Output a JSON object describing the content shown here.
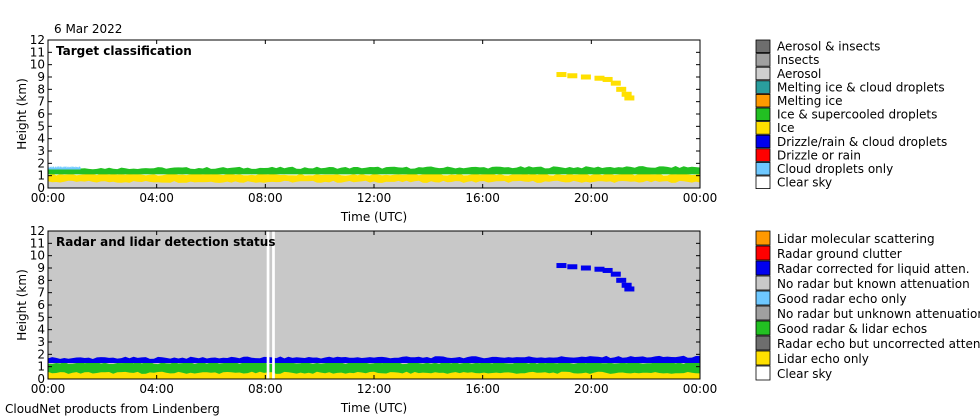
{
  "header": {
    "date": "6 Mar 2022"
  },
  "footer": {
    "text": "CloudNet products from Lindenberg"
  },
  "chart_data": [
    {
      "type": "heatmap",
      "title": "Target classification",
      "xlabel": "Time (UTC)",
      "ylabel": "Height (km)",
      "xlim": [
        0,
        24
      ],
      "ylim": [
        0,
        12
      ],
      "xticks": [
        "00:00",
        "04:00",
        "08:00",
        "12:00",
        "16:00",
        "20:00",
        "00:00"
      ],
      "yticks": [
        "0",
        "1",
        "2",
        "3",
        "4",
        "5",
        "6",
        "7",
        "8",
        "9",
        "10",
        "11",
        "12"
      ],
      "background": "#ffffff",
      "legend": [
        {
          "label": "Aerosol & insects",
          "color": "#6e6e6e"
        },
        {
          "label": "Insects",
          "color": "#a0a0a0"
        },
        {
          "label": "Aerosol",
          "color": "#cfcfcf"
        },
        {
          "label": "Melting ice & cloud droplets",
          "color": "#2a9d9d"
        },
        {
          "label": "Melting ice",
          "color": "#ff9900"
        },
        {
          "label": "Ice & supercooled droplets",
          "color": "#22c022"
        },
        {
          "label": "Ice",
          "color": "#ffe000"
        },
        {
          "label": "Drizzle/rain & cloud droplets",
          "color": "#0000ee"
        },
        {
          "label": "Drizzle or rain",
          "color": "#ff0000"
        },
        {
          "label": "Cloud droplets only",
          "color": "#6ec8ff"
        },
        {
          "label": "Clear sky",
          "color": "#ffffff"
        }
      ],
      "layers": [
        {
          "class": "Ice",
          "color": "#ffe000",
          "x": [
            0,
            24
          ],
          "base_km": [
            0.0,
            0.0
          ],
          "top_km": [
            1.1,
            1.1
          ]
        },
        {
          "class": "Aerosol",
          "color": "#cfcfcf",
          "x": [
            0,
            24
          ],
          "base_km": [
            0.0,
            0.0
          ],
          "top_km": [
            0.5,
            0.5
          ]
        },
        {
          "class": "Ice & supercooled droplets",
          "color": "#22c022",
          "x": [
            0,
            24
          ],
          "base_km": [
            1.1,
            1.1
          ],
          "top_km": [
            1.6,
            1.7
          ]
        },
        {
          "class": "Cloud droplets only",
          "color": "#6ec8ff",
          "x": [
            0,
            1.2
          ],
          "base_km": [
            1.5,
            1.5
          ],
          "top_km": [
            1.7,
            1.7
          ]
        }
      ],
      "elevated_layer": {
        "class": "Ice",
        "color": "#ffe000",
        "points": [
          [
            18.9,
            9.2
          ],
          [
            19.3,
            9.1
          ],
          [
            19.8,
            9.0
          ],
          [
            20.3,
            8.9
          ],
          [
            20.6,
            8.8
          ],
          [
            20.9,
            8.5
          ],
          [
            21.1,
            8.0
          ],
          [
            21.3,
            7.6
          ],
          [
            21.4,
            7.3
          ]
        ]
      }
    },
    {
      "type": "heatmap",
      "title": "Radar and lidar detection status",
      "xlabel": "Time (UTC)",
      "ylabel": "Height (km)",
      "xlim": [
        0,
        24
      ],
      "ylim": [
        0,
        12
      ],
      "xticks": [
        "00:00",
        "04:00",
        "08:00",
        "12:00",
        "16:00",
        "20:00",
        "00:00"
      ],
      "yticks": [
        "0",
        "1",
        "2",
        "3",
        "4",
        "5",
        "6",
        "7",
        "8",
        "9",
        "10",
        "11",
        "12"
      ],
      "background": "#c8c8c8",
      "legend": [
        {
          "label": "Lidar molecular scattering",
          "color": "#ff9900"
        },
        {
          "label": "Radar ground clutter",
          "color": "#ff0000"
        },
        {
          "label": "Radar corrected for liquid atten.",
          "color": "#0000ee"
        },
        {
          "label": "No radar but known attenuation",
          "color": "#c8c8c8"
        },
        {
          "label": "Good radar echo only",
          "color": "#6ec8ff"
        },
        {
          "label": "No radar but unknown attenuation",
          "color": "#a0a0a0"
        },
        {
          "label": "Good radar & lidar echos",
          "color": "#22c022"
        },
        {
          "label": "Radar echo but uncorrected atten.",
          "color": "#6e6e6e"
        },
        {
          "label": "Lidar echo only",
          "color": "#ffe000"
        },
        {
          "label": "Clear sky",
          "color": "#ffffff"
        }
      ],
      "layers": [
        {
          "class": "Good radar & lidar echos",
          "color": "#22c022",
          "x": [
            0,
            24
          ],
          "base_km": [
            0.0,
            0.0
          ],
          "top_km": [
            1.3,
            1.3
          ]
        },
        {
          "class": "Lidar echo only",
          "color": "#ffe000",
          "x": [
            0,
            24
          ],
          "base_km": [
            0.0,
            0.0
          ],
          "top_km": [
            0.5,
            0.5
          ]
        },
        {
          "class": "Radar corrected for liquid atten.",
          "color": "#0000ee",
          "x": [
            0,
            24
          ],
          "base_km": [
            1.3,
            1.3
          ],
          "top_km": [
            1.7,
            1.8
          ]
        }
      ],
      "gaps": [
        {
          "class": "Clear sky",
          "color": "#ffffff",
          "x": [
            8.05,
            8.15
          ]
        },
        {
          "class": "Clear sky",
          "color": "#ffffff",
          "x": [
            8.25,
            8.35
          ]
        }
      ],
      "elevated_layer": {
        "class": "Radar corrected for liquid atten.",
        "color": "#0000ee",
        "points": [
          [
            18.9,
            9.2
          ],
          [
            19.3,
            9.1
          ],
          [
            19.8,
            9.0
          ],
          [
            20.3,
            8.9
          ],
          [
            20.6,
            8.8
          ],
          [
            20.9,
            8.5
          ],
          [
            21.1,
            8.0
          ],
          [
            21.3,
            7.6
          ],
          [
            21.4,
            7.3
          ]
        ]
      }
    }
  ]
}
